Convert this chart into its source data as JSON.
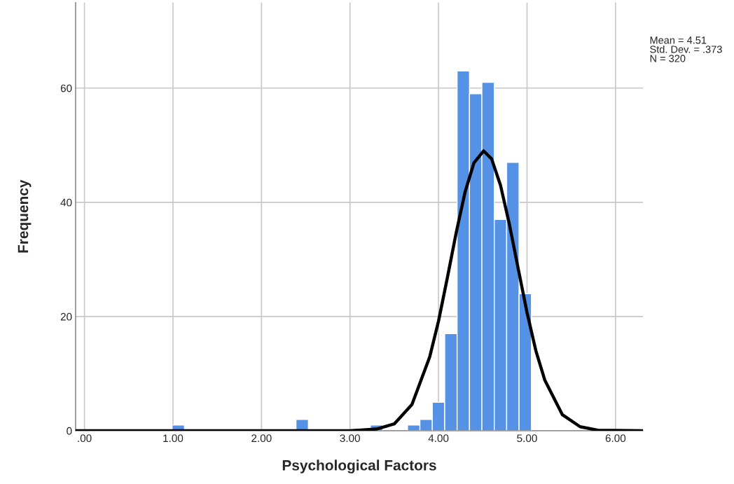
{
  "chart_data": {
    "type": "histogram",
    "xlabel": "Psychological Factors",
    "ylabel": "Frequency",
    "bins": [
      0.99,
      1.13,
      1.27,
      1.41,
      1.55,
      1.69,
      1.83,
      1.97,
      2.11,
      2.25,
      2.39,
      2.53,
      2.67,
      2.81,
      2.95,
      3.09,
      3.23,
      3.37,
      3.51,
      3.65,
      3.79,
      3.93,
      4.07,
      4.21,
      4.35,
      4.49,
      4.63,
      4.77,
      4.91,
      5.05
    ],
    "values": [
      1,
      0,
      0,
      0,
      0,
      0,
      0,
      0,
      0,
      0,
      2,
      0,
      0,
      0,
      0,
      0,
      1,
      0,
      0,
      1,
      2,
      5,
      17,
      63,
      59,
      61,
      37,
      47,
      24
    ],
    "color": "#5591e4",
    "series": [
      {
        "type": "line",
        "color": "#000000",
        "x": [
          -0.1,
          3.0,
          3.3,
          3.5,
          3.7,
          3.9,
          4.0,
          4.1,
          4.2,
          4.3,
          4.4,
          4.51,
          4.6,
          4.7,
          4.8,
          4.9,
          5.0,
          5.1,
          5.2,
          5.4,
          5.6,
          5.8,
          6.31
        ],
        "values": [
          0,
          0,
          0.3,
          1.2,
          4.6,
          12.9,
          19.2,
          26.8,
          34.7,
          41.8,
          46.9,
          49,
          47.6,
          43,
          36.2,
          28.4,
          20.7,
          14,
          8.9,
          2.8,
          0.7,
          0.1,
          0
        ]
      }
    ],
    "xlim": [
      -0.1,
      6.31
    ],
    "ylim": [
      0,
      75
    ],
    "xticks": [
      {
        "value": 0,
        "label": ".00"
      },
      {
        "value": 1,
        "label": "1.00"
      },
      {
        "value": 2,
        "label": "2.00"
      },
      {
        "value": 3,
        "label": "3.00"
      },
      {
        "value": 4,
        "label": "4.00"
      },
      {
        "value": 5,
        "label": "5.00"
      },
      {
        "value": 6,
        "label": "6.00"
      }
    ],
    "yticks": [
      0,
      20,
      40,
      60
    ],
    "grid": true,
    "annotations": [
      "Mean = 4.51\nStd. Dev. = .373\nN = 320"
    ]
  }
}
